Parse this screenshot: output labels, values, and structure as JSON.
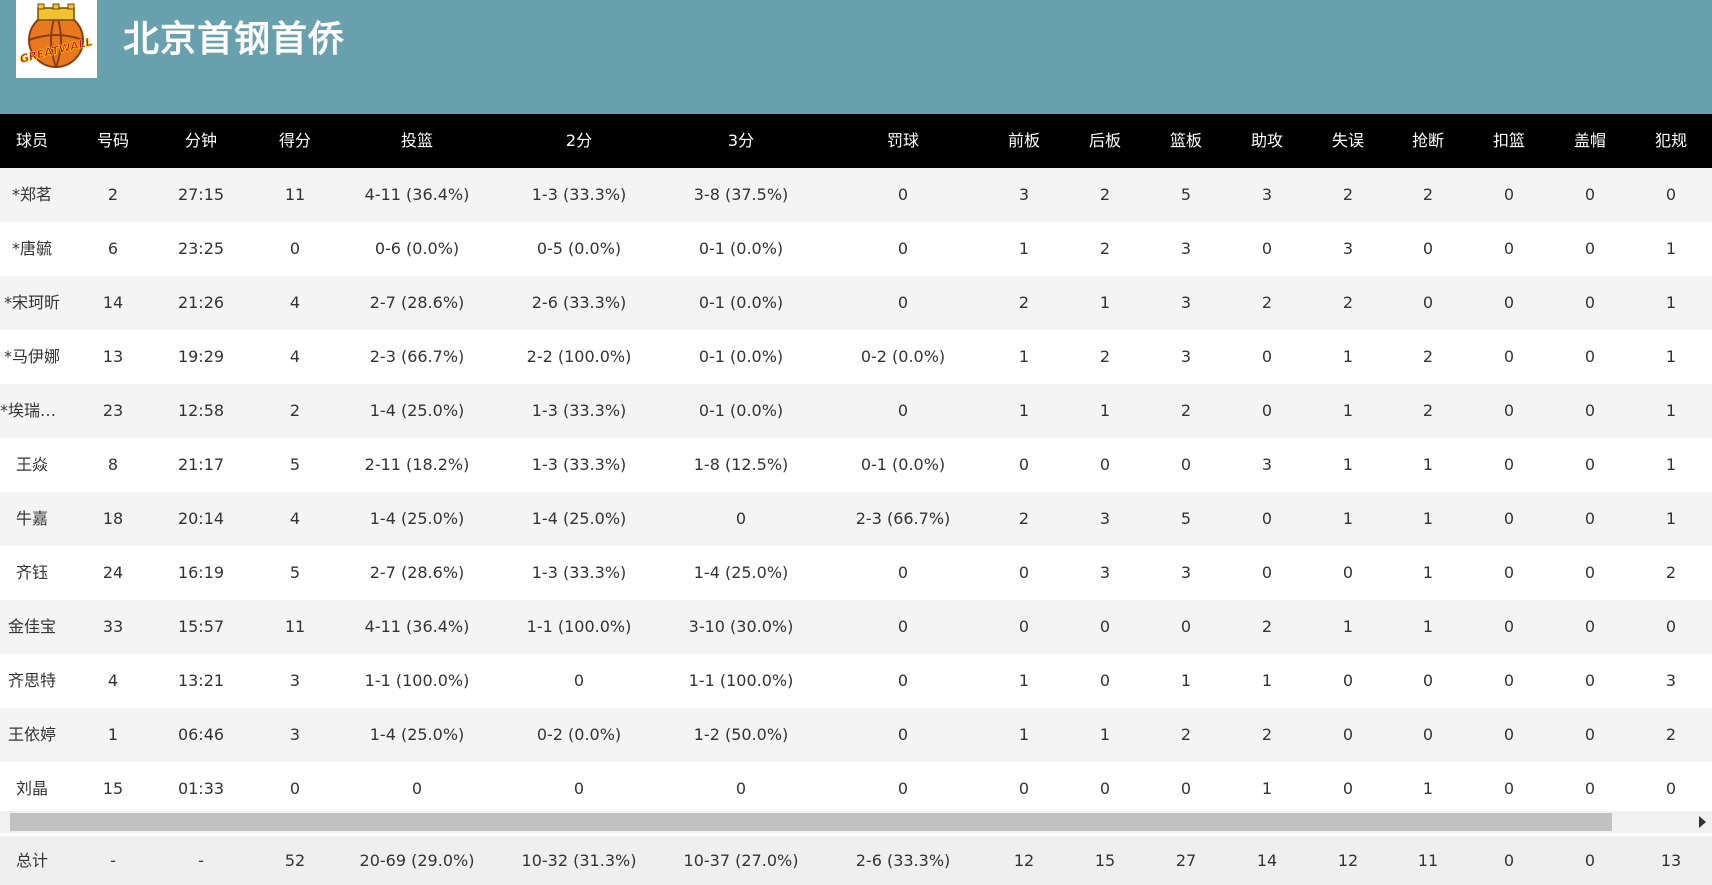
{
  "team": {
    "name": "北京首钢首侨",
    "logo_icon": "great-wall-basketball-logo",
    "logo_text": "GREATWALL"
  },
  "colors": {
    "header_bg": "#68a0ad",
    "table_header_bg": "#000000",
    "row_alt_bg": "#f4f4f4",
    "scrollbar_thumb": "#c1c1c1"
  },
  "columns": [
    "球员",
    "号码",
    "分钟",
    "得分",
    "投篮",
    "2分",
    "3分",
    "罚球",
    "前板",
    "后板",
    "篮板",
    "助攻",
    "失误",
    "抢断",
    "扣篮",
    "盖帽",
    "犯规"
  ],
  "players": [
    [
      "*郑茗",
      "2",
      "27:15",
      "11",
      "4-11 (36.4%)",
      "1-3 (33.3%)",
      "3-8 (37.5%)",
      "0",
      "3",
      "2",
      "5",
      "3",
      "2",
      "2",
      "0",
      "0",
      "0"
    ],
    [
      "*唐毓",
      "6",
      "23:25",
      "0",
      "0-6 (0.0%)",
      "0-5 (0.0%)",
      "0-1 (0.0%)",
      "0",
      "1",
      "2",
      "3",
      "0",
      "3",
      "0",
      "0",
      "0",
      "1"
    ],
    [
      "*宋珂昕",
      "14",
      "21:26",
      "4",
      "2-7 (28.6%)",
      "2-6 (33.3%)",
      "0-1 (0.0%)",
      "0",
      "2",
      "1",
      "3",
      "2",
      "2",
      "0",
      "0",
      "0",
      "1"
    ],
    [
      "*马伊娜",
      "13",
      "19:29",
      "4",
      "2-3 (66.7%)",
      "2-2 (100.0%)",
      "0-1 (0.0%)",
      "0-2 (0.0%)",
      "1",
      "2",
      "3",
      "0",
      "1",
      "2",
      "0",
      "0",
      "1"
    ],
    [
      "*埃瑞尔...",
      "23",
      "12:58",
      "2",
      "1-4 (25.0%)",
      "1-3 (33.3%)",
      "0-1 (0.0%)",
      "0",
      "1",
      "1",
      "2",
      "0",
      "1",
      "2",
      "0",
      "0",
      "1"
    ],
    [
      "王焱",
      "8",
      "21:17",
      "5",
      "2-11 (18.2%)",
      "1-3 (33.3%)",
      "1-8 (12.5%)",
      "0-1 (0.0%)",
      "0",
      "0",
      "0",
      "3",
      "1",
      "1",
      "0",
      "0",
      "1"
    ],
    [
      "牛嘉",
      "18",
      "20:14",
      "4",
      "1-4 (25.0%)",
      "1-4 (25.0%)",
      "0",
      "2-3 (66.7%)",
      "2",
      "3",
      "5",
      "0",
      "1",
      "1",
      "0",
      "0",
      "1"
    ],
    [
      "齐钰",
      "24",
      "16:19",
      "5",
      "2-7 (28.6%)",
      "1-3 (33.3%)",
      "1-4 (25.0%)",
      "0",
      "0",
      "3",
      "3",
      "0",
      "0",
      "1",
      "0",
      "0",
      "2"
    ],
    [
      "金佳宝",
      "33",
      "15:57",
      "11",
      "4-11 (36.4%)",
      "1-1 (100.0%)",
      "3-10 (30.0%)",
      "0",
      "0",
      "0",
      "0",
      "2",
      "1",
      "1",
      "0",
      "0",
      "0"
    ],
    [
      "齐思特",
      "4",
      "13:21",
      "3",
      "1-1 (100.0%)",
      "0",
      "1-1 (100.0%)",
      "0",
      "1",
      "0",
      "1",
      "1",
      "0",
      "0",
      "0",
      "0",
      "3"
    ],
    [
      "王依婷",
      "1",
      "06:46",
      "3",
      "1-4 (25.0%)",
      "0-2 (0.0%)",
      "1-2 (50.0%)",
      "0",
      "1",
      "1",
      "2",
      "2",
      "0",
      "0",
      "0",
      "0",
      "2"
    ],
    [
      "刘晶",
      "15",
      "01:33",
      "0",
      "0",
      "0",
      "0",
      "0",
      "0",
      "0",
      "0",
      "1",
      "0",
      "1",
      "0",
      "0",
      "0"
    ]
  ],
  "totals": [
    "总计",
    "-",
    "-",
    "52",
    "20-69 (29.0%)",
    "10-32 (31.3%)",
    "10-37 (27.0%)",
    "2-6 (33.3%)",
    "12",
    "15",
    "27",
    "14",
    "12",
    "11",
    "0",
    "0",
    "13"
  ],
  "scrollbar": {
    "arrow_icon": "scroll-right-arrow-icon"
  }
}
